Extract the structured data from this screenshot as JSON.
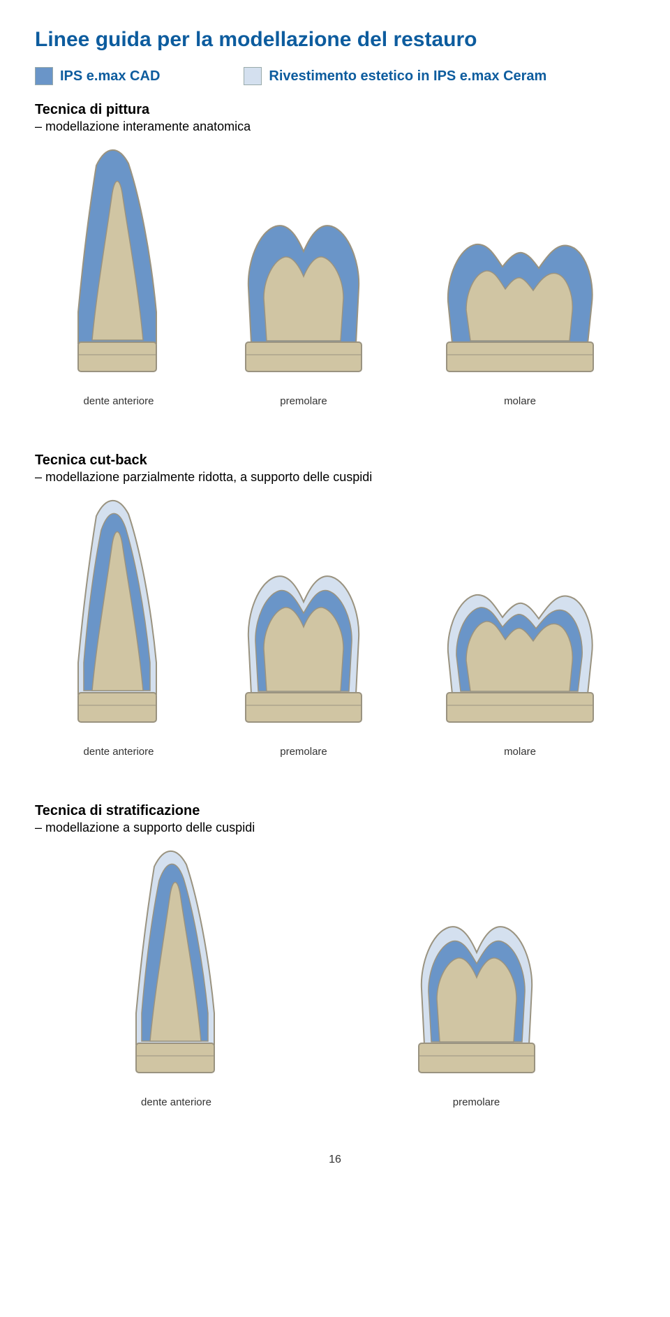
{
  "title": "Linee guida per la modellazione del restauro",
  "title_color": "#0d5c9e",
  "legend": {
    "item1": {
      "label": "IPS e.max CAD",
      "color": "#6a95c8",
      "label_color": "#0d5c9e"
    },
    "item2": {
      "label": "Rivestimento estetico in IPS e.max Ceram",
      "color": "#d4e0ef",
      "label_color": "#0d5c9e"
    }
  },
  "sections": [
    {
      "title": "Tecnica di pittura",
      "subtitle": "– modellazione interamente anatomica",
      "teeth": [
        {
          "label": "dente anteriore",
          "type": "anterior",
          "outer": "#6a95c8",
          "inner": "#d0c5a3",
          "base": "#d0c5a3"
        },
        {
          "label": "premolare",
          "type": "premolar",
          "outer": "#6a95c8",
          "inner": "#d0c5a3",
          "base": "#d0c5a3"
        },
        {
          "label": "molare",
          "type": "molar",
          "outer": "#6a95c8",
          "inner": "#d0c5a3",
          "base": "#d0c5a3"
        }
      ]
    },
    {
      "title": "Tecnica cut-back",
      "subtitle": "– modellazione parzialmente ridotta, a supporto delle cuspidi",
      "teeth": [
        {
          "label": "dente anteriore",
          "type": "anterior",
          "outer": "#d4e0ef",
          "mid": "#6a95c8",
          "inner": "#d0c5a3",
          "base": "#d0c5a3"
        },
        {
          "label": "premolare",
          "type": "premolar",
          "outer": "#d4e0ef",
          "mid": "#6a95c8",
          "inner": "#d0c5a3",
          "base": "#d0c5a3"
        },
        {
          "label": "molare",
          "type": "molar",
          "outer": "#d4e0ef",
          "mid": "#6a95c8",
          "inner": "#d0c5a3",
          "base": "#d0c5a3"
        }
      ]
    },
    {
      "title": "Tecnica di stratificazione",
      "subtitle": "– modellazione a supporto delle cuspidi",
      "teeth": [
        {
          "label": "dente anteriore",
          "type": "anterior",
          "outer": "#d4e0ef",
          "mid": "#6a95c8",
          "inner": "#d0c5a3",
          "base": "#d0c5a3"
        },
        {
          "label": "premolare",
          "type": "premolar",
          "outer": "#d4e0ef",
          "mid": "#6a95c8",
          "inner": "#d0c5a3",
          "base": "#d0c5a3"
        }
      ]
    }
  ],
  "stroke_color": "#9a9380",
  "page_number": "16"
}
